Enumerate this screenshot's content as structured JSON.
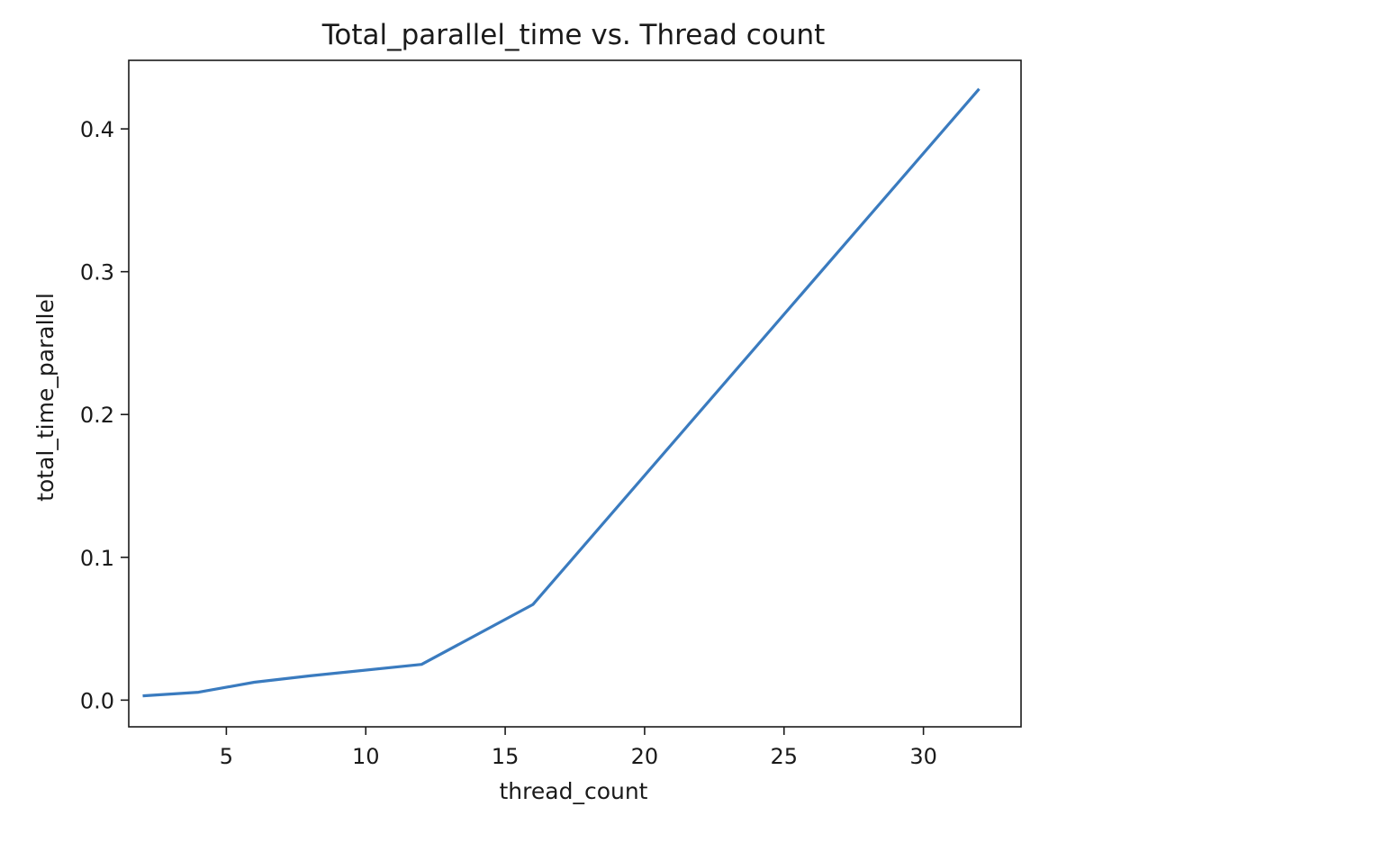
{
  "chart_data": {
    "type": "line",
    "title": "Total_parallel_time vs. Thread count",
    "xlabel": "thread_count",
    "ylabel": "total_time_parallel",
    "xlim": [
      1.5,
      33.5
    ],
    "ylim": [
      -0.0187,
      0.448
    ],
    "grid": false,
    "legend": "none",
    "x_ticks": [
      5,
      10,
      15,
      20,
      25,
      30
    ],
    "x_tick_labels": [
      "5",
      "10",
      "15",
      "20",
      "25",
      "30"
    ],
    "y_ticks": [
      0.0,
      0.1,
      0.2,
      0.3,
      0.4
    ],
    "y_tick_labels": [
      "0.0",
      "0.1",
      "0.2",
      "0.3",
      "0.4"
    ],
    "series": [
      {
        "color": "#3a7bbf",
        "x": [
          2,
          4,
          6,
          8,
          12,
          16,
          32
        ],
        "y": [
          0.003,
          0.0055,
          0.0125,
          0.017,
          0.025,
          0.067,
          0.428
        ]
      }
    ]
  }
}
